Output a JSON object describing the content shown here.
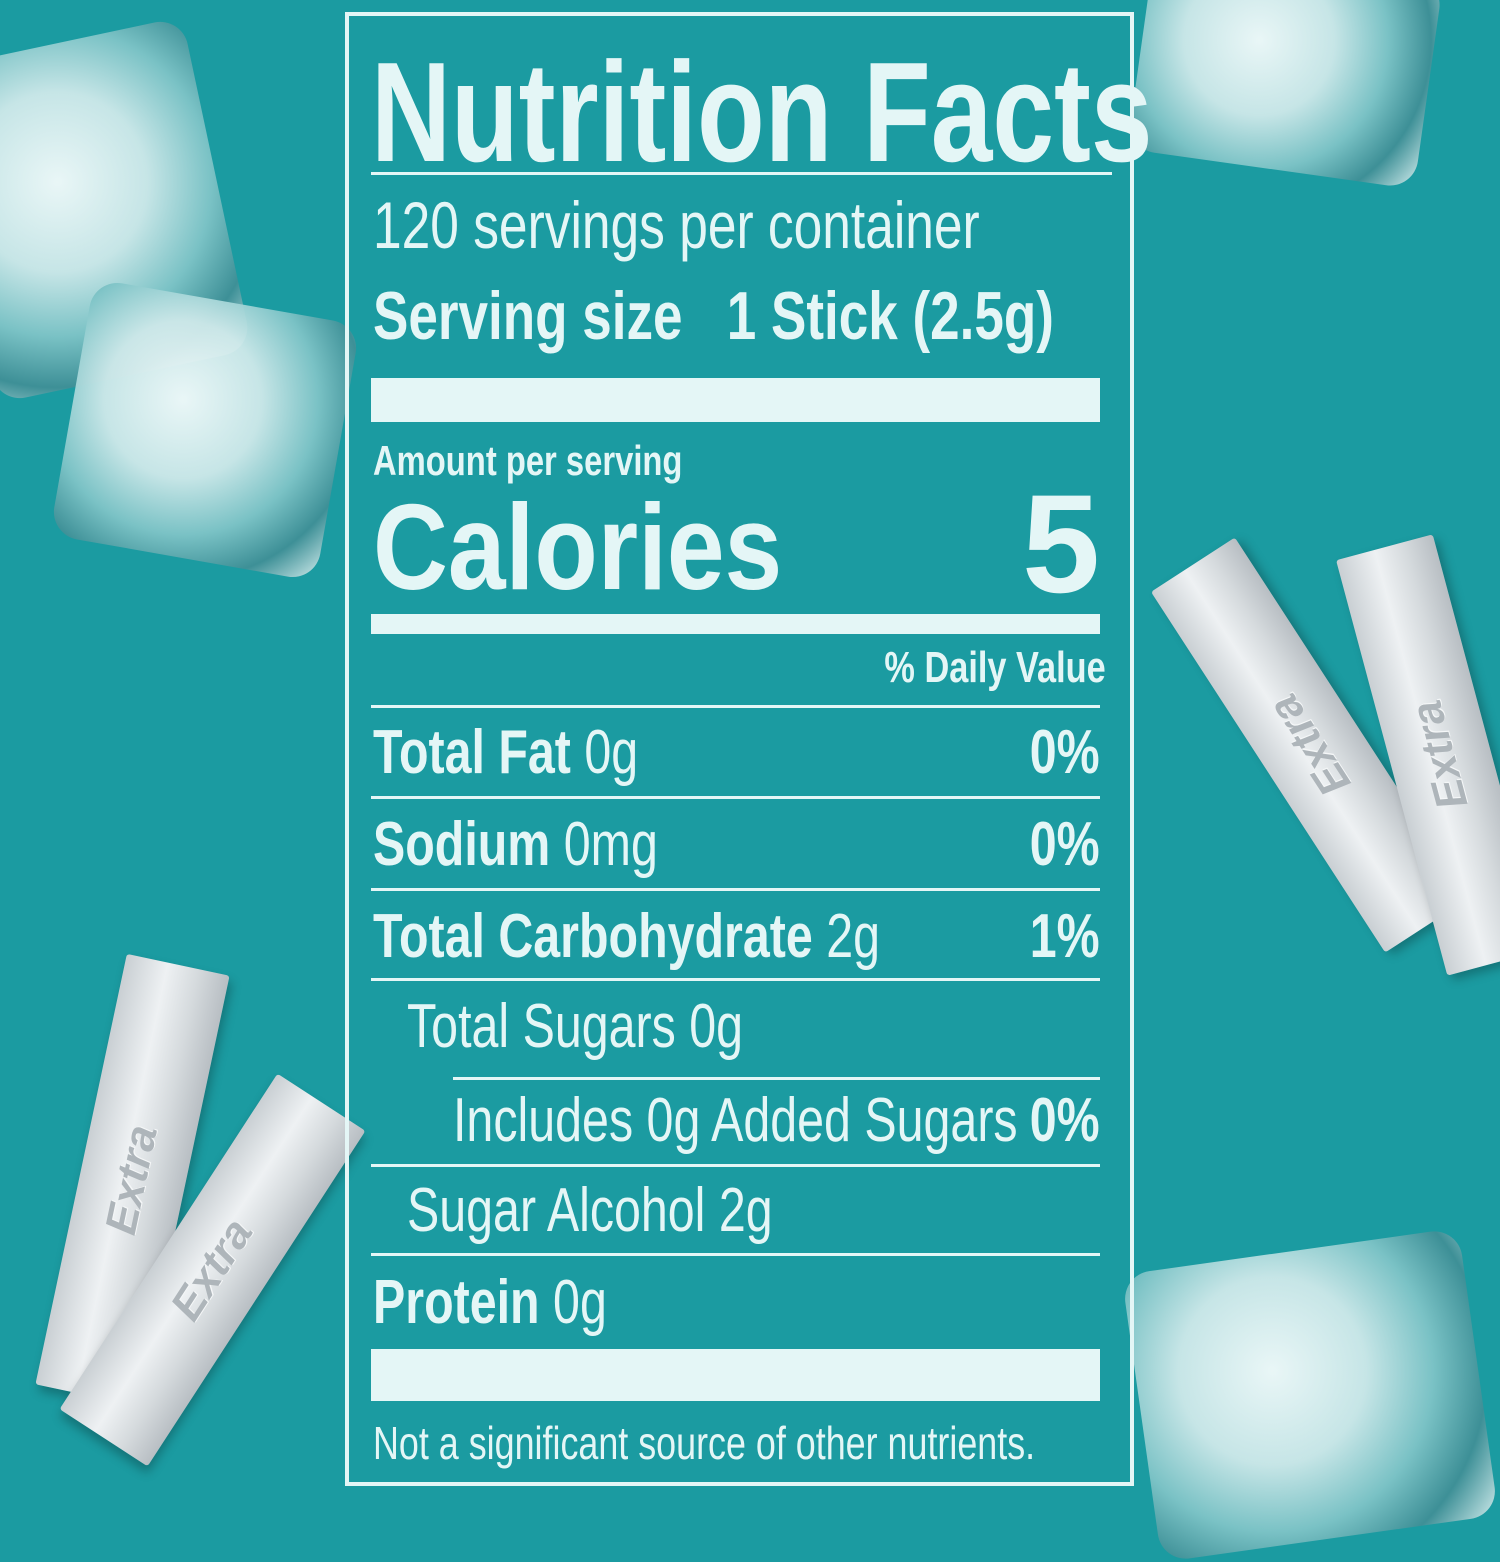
{
  "label": {
    "title": "Nutrition Facts",
    "servings": "120 servings per container",
    "serving_size_label": "Serving size",
    "serving_size_value": "1 Stick (2.5g)",
    "amount_per_serving": "Amount per serving",
    "calories_label": "Calories",
    "calories_value": "5",
    "daily_value_header": "% Daily Value",
    "rows": [
      {
        "name": "Total Fat",
        "amount": "0g",
        "dv": "0%"
      },
      {
        "name": "Sodium",
        "amount": "0mg",
        "dv": "0%"
      },
      {
        "name": "Total Carbohydrate",
        "amount": "2g",
        "dv": "1%"
      },
      {
        "name": "Total Sugars 0g"
      },
      {
        "name": "Includes 0g Added Sugars",
        "dv": "0%"
      },
      {
        "name": "Sugar Alcohol 2g"
      },
      {
        "name": "Protein",
        "amount": "0g"
      }
    ],
    "footnote": "Not a significant source of other nutrients."
  },
  "colors": {
    "background": "#1b9ba1",
    "text": "#e4f6f6"
  },
  "decorations": {
    "gum_wrapper_text": "Extra"
  }
}
